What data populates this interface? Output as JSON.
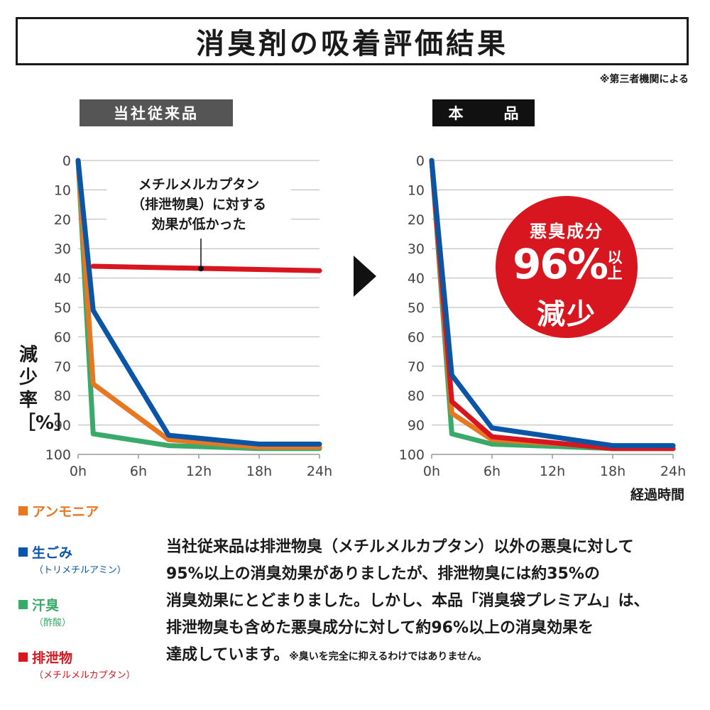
{
  "title": "消臭剤の吸着評価結果",
  "note": "※第三者機関による",
  "labels": {
    "old": "当社従来品",
    "new": "本　品"
  },
  "yaxis_label": "減少率［%］",
  "xaxis_label": "経過時間",
  "callout": [
    "メチルメルカプタン",
    "（排泄物臭）に対する",
    "効果が低かった"
  ],
  "badge": {
    "line1": "悪臭成分",
    "value": "96%",
    "suffix": "以上",
    "line3": "減少"
  },
  "legend": [
    {
      "name": "アンモニア",
      "sub": "",
      "color": "#e87722"
    },
    {
      "name": "生ごみ",
      "sub": "（トリメチルアミン）",
      "color": "#0a55a5"
    },
    {
      "name": "汗臭",
      "sub": "（酢酸）",
      "color": "#3aaa6a"
    },
    {
      "name": "排泄物",
      "sub": "（メチルメルカプタン）",
      "color": "#d7161f"
    }
  ],
  "description": {
    "line1": "当社従来品は排泄物臭（メチルメルカプタン）以外の悪臭に対して",
    "line2": "95%以上の消臭効果がありましたが、排泄物臭には約35%の",
    "line3": "消臭効果にとどまりました。しかし、本品「消臭袋プレミアム」は、",
    "line4": "排泄物臭も含めた悪臭成分に対して約96%以上の消臭効果を",
    "line5": "達成しています。",
    "small": "※臭いを完全に抑えるわけではありません。"
  },
  "chart_data": [
    {
      "type": "line",
      "title": "当社従来品",
      "ylabel": "減少率［%］",
      "xlabel": "経過時間",
      "x": [
        0,
        1.5,
        9,
        18,
        24
      ],
      "xticks": [
        "0h",
        "6h",
        "12h",
        "18h",
        "24h"
      ],
      "xtick_values": [
        0,
        6,
        12,
        18,
        24
      ],
      "yticks": [
        0,
        10,
        20,
        30,
        40,
        50,
        60,
        70,
        80,
        90,
        100
      ],
      "ylim": [
        0,
        100
      ],
      "y_inverted": true,
      "grid": true,
      "series": [
        {
          "name": "汗臭",
          "color": "#3aaa6a",
          "x": [
            0,
            1.5,
            9,
            18,
            24
          ],
          "values": [
            0,
            93,
            97,
            98,
            98
          ]
        },
        {
          "name": "アンモニア",
          "color": "#e87722",
          "x": [
            0,
            1.5,
            9,
            18,
            24
          ],
          "values": [
            0,
            76,
            95,
            97.5,
            97.5
          ]
        },
        {
          "name": "生ごみ",
          "color": "#0a55a5",
          "x": [
            0,
            1.5,
            9,
            18,
            24
          ],
          "values": [
            0,
            51,
            93.5,
            96.5,
            96.5
          ]
        },
        {
          "name": "排泄物",
          "color": "#d7161f",
          "x": [
            1.5,
            24
          ],
          "values": [
            36,
            37.5
          ]
        }
      ]
    },
    {
      "type": "line",
      "title": "本品",
      "ylabel": "減少率［%］",
      "xlabel": "経過時間",
      "x": [
        0,
        2,
        6,
        18,
        24
      ],
      "xticks": [
        "0h",
        "6h",
        "12h",
        "18h",
        "24h"
      ],
      "xtick_values": [
        0,
        6,
        12,
        18,
        24
      ],
      "yticks": [
        0,
        10,
        20,
        30,
        40,
        50,
        60,
        70,
        80,
        90,
        100
      ],
      "ylim": [
        0,
        100
      ],
      "y_inverted": true,
      "grid": true,
      "series": [
        {
          "name": "汗臭",
          "color": "#3aaa6a",
          "x": [
            0,
            2,
            6,
            18,
            24
          ],
          "values": [
            0,
            93,
            96.5,
            98,
            98
          ]
        },
        {
          "name": "アンモニア",
          "color": "#e87722",
          "x": [
            0,
            2,
            6,
            18,
            24
          ],
          "values": [
            0,
            86,
            95,
            97.5,
            98
          ]
        },
        {
          "name": "排泄物",
          "color": "#d7161f",
          "x": [
            0,
            2,
            6,
            18,
            24
          ],
          "values": [
            0,
            82,
            94,
            98,
            98
          ]
        },
        {
          "name": "生ごみ",
          "color": "#0a55a5",
          "x": [
            0,
            2,
            6,
            18,
            24
          ],
          "values": [
            0,
            73,
            91,
            97,
            97
          ]
        }
      ]
    }
  ]
}
